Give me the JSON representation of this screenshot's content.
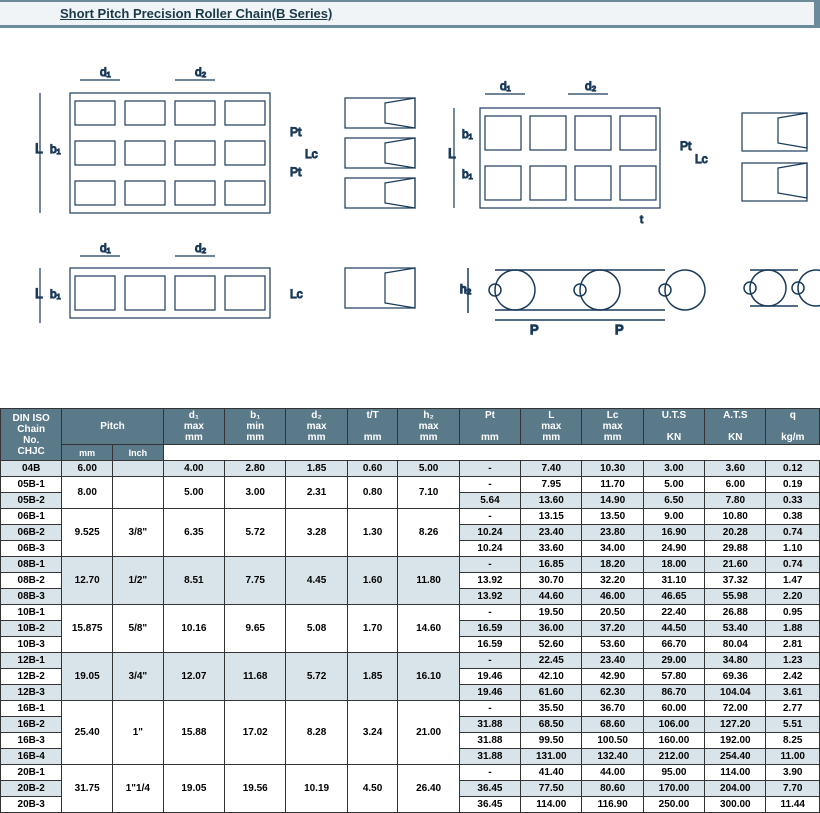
{
  "title": "Short Pitch Precision Roller Chain(B Series)",
  "headers": {
    "chain_no_l1": "DIN ISO",
    "chain_no_l2": "Chain",
    "chain_no_l3": "No.",
    "chain_no_l4": "CHJC",
    "pitch": "Pitch",
    "mm": "mm",
    "inch": "Inch",
    "d1": "d₁",
    "b1": "b₁",
    "d2": "d₂",
    "tT": "t/T",
    "h2": "h₂",
    "Pt": "Pt",
    "L": "L",
    "Lc": "Lc",
    "UTS": "U.T.S",
    "ATS": "A.T.S",
    "q": "q",
    "max": "max",
    "min": "min",
    "unit_mm": "mm",
    "unit_KN": "KN",
    "unit_kgm": "kg/m"
  },
  "groups": [
    {
      "pitch_mm": "6.00",
      "pitch_inch": "",
      "d1": "4.00",
      "b1": "2.80",
      "d2": "1.85",
      "tT": "0.60",
      "h2": "5.00",
      "rows": [
        {
          "chain": "04B",
          "Pt": "-",
          "L": "7.40",
          "Lc": "10.30",
          "UTS": "3.00",
          "ATS": "3.60",
          "q": "0.12"
        }
      ]
    },
    {
      "pitch_mm": "8.00",
      "pitch_inch": "",
      "d1": "5.00",
      "b1": "3.00",
      "d2": "2.31",
      "tT": "0.80",
      "h2": "7.10",
      "rows": [
        {
          "chain": "05B-1",
          "Pt": "-",
          "L": "7.95",
          "Lc": "11.70",
          "UTS": "5.00",
          "ATS": "6.00",
          "q": "0.19"
        },
        {
          "chain": "05B-2",
          "Pt": "5.64",
          "L": "13.60",
          "Lc": "14.90",
          "UTS": "6.50",
          "ATS": "7.80",
          "q": "0.33"
        }
      ]
    },
    {
      "pitch_mm": "9.525",
      "pitch_inch": "3/8\"",
      "d1": "6.35",
      "b1": "5.72",
      "d2": "3.28",
      "tT": "1.30",
      "h2": "8.26",
      "rows": [
        {
          "chain": "06B-1",
          "Pt": "-",
          "L": "13.15",
          "Lc": "13.50",
          "UTS": "9.00",
          "ATS": "10.80",
          "q": "0.38"
        },
        {
          "chain": "06B-2",
          "Pt": "10.24",
          "L": "23.40",
          "Lc": "23.80",
          "UTS": "16.90",
          "ATS": "20.28",
          "q": "0.74"
        },
        {
          "chain": "06B-3",
          "Pt": "10.24",
          "L": "33.60",
          "Lc": "34.00",
          "UTS": "24.90",
          "ATS": "29.88",
          "q": "1.10"
        }
      ]
    },
    {
      "pitch_mm": "12.70",
      "pitch_inch": "1/2\"",
      "d1": "8.51",
      "b1": "7.75",
      "d2": "4.45",
      "tT": "1.60",
      "h2": "11.80",
      "rows": [
        {
          "chain": "08B-1",
          "Pt": "-",
          "L": "16.85",
          "Lc": "18.20",
          "UTS": "18.00",
          "ATS": "21.60",
          "q": "0.74"
        },
        {
          "chain": "08B-2",
          "Pt": "13.92",
          "L": "30.70",
          "Lc": "32.20",
          "UTS": "31.10",
          "ATS": "37.32",
          "q": "1.47"
        },
        {
          "chain": "08B-3",
          "Pt": "13.92",
          "L": "44.60",
          "Lc": "46.00",
          "UTS": "46.65",
          "ATS": "55.98",
          "q": "2.20"
        }
      ]
    },
    {
      "pitch_mm": "15.875",
      "pitch_inch": "5/8\"",
      "d1": "10.16",
      "b1": "9.65",
      "d2": "5.08",
      "tT": "1.70",
      "h2": "14.60",
      "rows": [
        {
          "chain": "10B-1",
          "Pt": "-",
          "L": "19.50",
          "Lc": "20.50",
          "UTS": "22.40",
          "ATS": "26.88",
          "q": "0.95"
        },
        {
          "chain": "10B-2",
          "Pt": "16.59",
          "L": "36.00",
          "Lc": "37.20",
          "UTS": "44.50",
          "ATS": "53.40",
          "q": "1.88"
        },
        {
          "chain": "10B-3",
          "Pt": "16.59",
          "L": "52.60",
          "Lc": "53.60",
          "UTS": "66.70",
          "ATS": "80.04",
          "q": "2.81"
        }
      ]
    },
    {
      "pitch_mm": "19.05",
      "pitch_inch": "3/4\"",
      "d1": "12.07",
      "b1": "11.68",
      "d2": "5.72",
      "tT": "1.85",
      "h2": "16.10",
      "rows": [
        {
          "chain": "12B-1",
          "Pt": "-",
          "L": "22.45",
          "Lc": "23.40",
          "UTS": "29.00",
          "ATS": "34.80",
          "q": "1.23"
        },
        {
          "chain": "12B-2",
          "Pt": "19.46",
          "L": "42.10",
          "Lc": "42.90",
          "UTS": "57.80",
          "ATS": "69.36",
          "q": "2.42"
        },
        {
          "chain": "12B-3",
          "Pt": "19.46",
          "L": "61.60",
          "Lc": "62.30",
          "UTS": "86.70",
          "ATS": "104.04",
          "q": "3.61"
        }
      ]
    },
    {
      "pitch_mm": "25.40",
      "pitch_inch": "1\"",
      "d1": "15.88",
      "b1": "17.02",
      "d2": "8.28",
      "tT": "3.24",
      "h2": "21.00",
      "rows": [
        {
          "chain": "16B-1",
          "Pt": "-",
          "L": "35.50",
          "Lc": "36.70",
          "UTS": "60.00",
          "ATS": "72.00",
          "q": "2.77"
        },
        {
          "chain": "16B-2",
          "Pt": "31.88",
          "L": "68.50",
          "Lc": "68.60",
          "UTS": "106.00",
          "ATS": "127.20",
          "q": "5.51"
        },
        {
          "chain": "16B-3",
          "Pt": "31.88",
          "L": "99.50",
          "Lc": "100.50",
          "UTS": "160.00",
          "ATS": "192.00",
          "q": "8.25"
        },
        {
          "chain": "16B-4",
          "Pt": "31.88",
          "L": "131.00",
          "Lc": "132.40",
          "UTS": "212.00",
          "ATS": "254.40",
          "q": "11.00"
        }
      ]
    },
    {
      "pitch_mm": "31.75",
      "pitch_inch": "1\"1/4",
      "d1": "19.05",
      "b1": "19.56",
      "d2": "10.19",
      "tT": "4.50",
      "h2": "26.40",
      "rows": [
        {
          "chain": "20B-1",
          "Pt": "-",
          "L": "41.40",
          "Lc": "44.00",
          "UTS": "95.00",
          "ATS": "114.00",
          "q": "3.90"
        },
        {
          "chain": "20B-2",
          "Pt": "36.45",
          "L": "77.50",
          "Lc": "80.60",
          "UTS": "170.00",
          "ATS": "204.00",
          "q": "7.70"
        },
        {
          "chain": "20B-3",
          "Pt": "36.45",
          "L": "114.00",
          "Lc": "116.90",
          "UTS": "250.00",
          "ATS": "300.00",
          "q": "11.44"
        }
      ]
    }
  ]
}
